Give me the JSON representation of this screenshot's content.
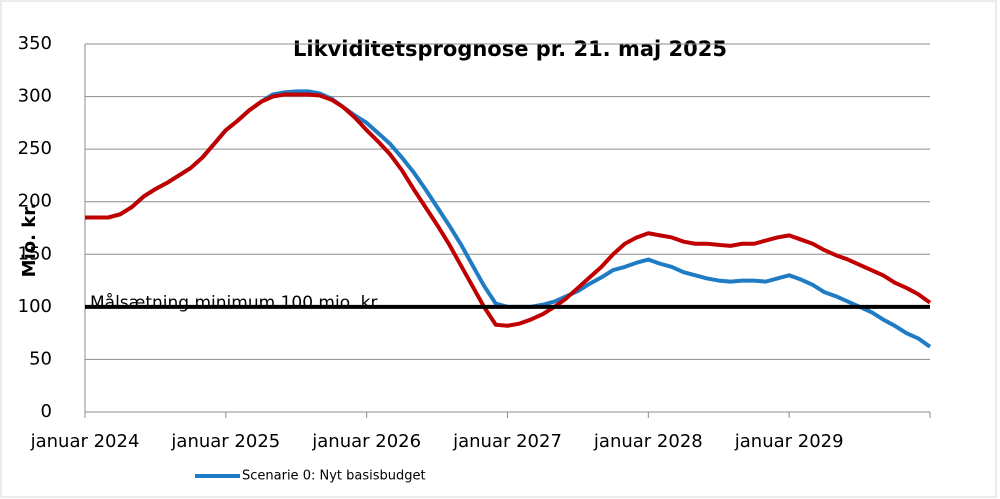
{
  "chart_data": {
    "type": "line",
    "title": "Likviditetsprognose pr. 21. maj 2025",
    "y_label": "Mio. kr.",
    "annotation": "Målsætning minimum 100 mio. kr.",
    "reference_line": {
      "value": 100,
      "color": "#000000"
    },
    "categories": [
      "januar 2024",
      null,
      null,
      null,
      null,
      null,
      null,
      null,
      null,
      null,
      null,
      null,
      "januar 2025",
      null,
      null,
      null,
      null,
      null,
      null,
      null,
      null,
      null,
      null,
      null,
      "januar 2026",
      null,
      null,
      null,
      null,
      null,
      null,
      null,
      null,
      null,
      null,
      null,
      "januar 2027",
      null,
      null,
      null,
      null,
      null,
      null,
      null,
      null,
      null,
      null,
      null,
      "januar 2028",
      null,
      null,
      null,
      null,
      null,
      null,
      null,
      null,
      null,
      null,
      null,
      "januar 2029",
      null,
      null,
      null,
      null,
      null,
      null,
      null,
      null,
      null,
      null,
      null,
      null
    ],
    "series": [
      {
        "name": "Scenarie 0: Nyt basisbudget",
        "color": "#1f7cc4",
        "values": [
          185,
          185,
          185,
          188,
          195,
          205,
          212,
          218,
          225,
          232,
          242,
          255,
          268,
          277,
          287,
          295,
          302,
          304,
          305,
          305,
          303,
          298,
          290,
          282,
          275,
          265,
          255,
          242,
          228,
          212,
          195,
          178,
          160,
          140,
          120,
          103,
          100,
          100,
          100,
          102,
          105,
          110,
          115,
          122,
          128,
          135,
          138,
          142,
          145,
          141,
          138,
          133,
          130,
          127,
          125,
          124,
          125,
          125,
          124,
          127,
          130,
          126,
          121,
          114,
          110,
          105,
          100,
          95,
          88,
          82,
          75,
          70,
          62
        ]
      },
      {
        "color": "#c00000",
        "values": [
          185,
          185,
          185,
          188,
          195,
          205,
          212,
          218,
          225,
          232,
          242,
          255,
          268,
          277,
          287,
          295,
          300,
          302,
          302,
          302,
          301,
          297,
          290,
          280,
          268,
          257,
          245,
          230,
          212,
          195,
          178,
          160,
          140,
          120,
          100,
          83,
          82,
          84,
          88,
          93,
          100,
          108,
          118,
          128,
          138,
          150,
          160,
          166,
          170,
          168,
          166,
          162,
          160,
          160,
          159,
          158,
          160,
          160,
          163,
          166,
          168,
          164,
          160,
          154,
          149,
          145,
          140,
          135,
          130,
          123,
          118,
          112,
          104
        ]
      }
    ],
    "ylim": [
      0,
      350
    ],
    "yticks": [
      0,
      50,
      100,
      150,
      200,
      250,
      300,
      350
    ],
    "grid": true
  }
}
